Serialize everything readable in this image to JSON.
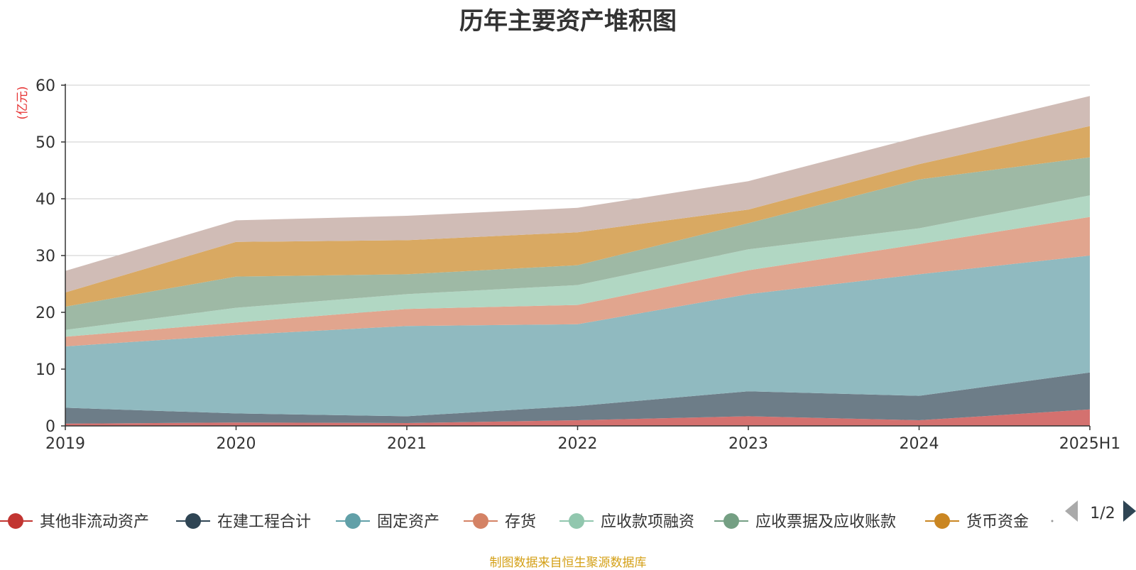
{
  "title": "历年主要资产堆积图",
  "unit_label": "(亿元)",
  "source_note": "制图数据来自恒生聚源数据库",
  "legend_page": "1/2",
  "chart_data": {
    "type": "area",
    "stacked": true,
    "title": "历年主要资产堆积图",
    "ylabel": "(亿元)",
    "ylim": [
      0,
      60
    ],
    "yticks": [
      0,
      10,
      20,
      30,
      40,
      50,
      60
    ],
    "grid": true,
    "legend_position": "bottom",
    "categories": [
      "2019",
      "2020",
      "2021",
      "2022",
      "2023",
      "2024",
      "2025H1"
    ],
    "series": [
      {
        "name": "其他非流动资产",
        "color": "#c23531",
        "fill": "#d4716f",
        "values": [
          0.4,
          0.6,
          0.5,
          1.0,
          1.7,
          1.0,
          2.9
        ]
      },
      {
        "name": "在建工程合计",
        "color": "#2f4554",
        "fill": "#6d7d88",
        "values": [
          2.8,
          1.6,
          1.2,
          2.5,
          4.4,
          4.3,
          6.5
        ]
      },
      {
        "name": "固定资产",
        "color": "#61a0a8",
        "fill": "#90bac0",
        "values": [
          10.8,
          13.8,
          15.9,
          14.4,
          17.1,
          21.4,
          20.6
        ]
      },
      {
        "name": "存货",
        "color": "#d48265",
        "fill": "#e1a58e",
        "values": [
          1.7,
          2.2,
          3.0,
          3.4,
          4.2,
          5.3,
          6.8
        ]
      },
      {
        "name": "应收款项融资",
        "color": "#91c7ae",
        "fill": "#b1d7c3",
        "values": [
          1.2,
          2.6,
          2.6,
          3.5,
          3.7,
          2.8,
          3.8
        ]
      },
      {
        "name": "应收票据及应收账款",
        "color": "#749f83",
        "fill": "#9eb9a5",
        "values": [
          4.1,
          5.5,
          3.5,
          3.5,
          4.6,
          8.6,
          6.7
        ]
      },
      {
        "name": "货币资金",
        "color": "#ca8622",
        "fill": "#d9a962",
        "values": [
          2.5,
          6.1,
          6.0,
          5.8,
          2.4,
          2.7,
          5.5
        ]
      },
      {
        "name": "",
        "color": "#bda29a",
        "fill": "#d0bcb6",
        "values": [
          3.8,
          3.8,
          4.3,
          4.3,
          5.0,
          4.8,
          5.3
        ]
      }
    ]
  }
}
